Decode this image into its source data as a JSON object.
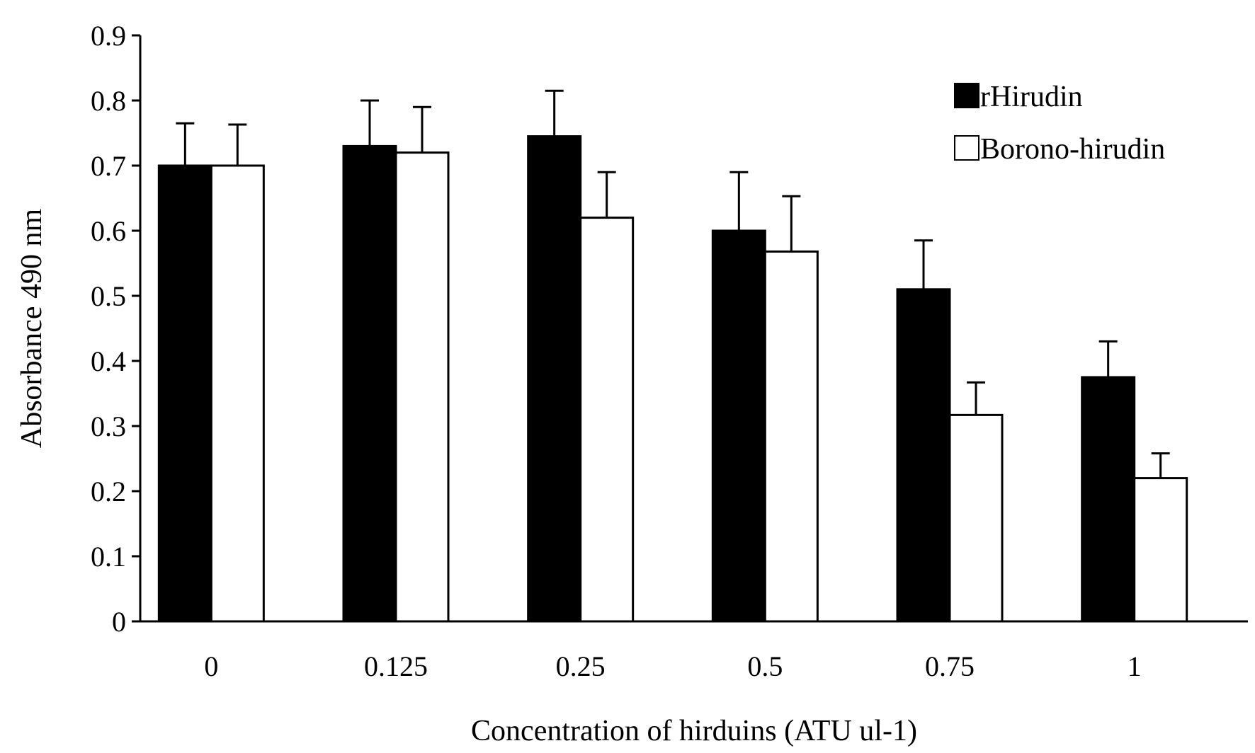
{
  "chart_data": {
    "type": "bar",
    "categories": [
      "0",
      "0.125",
      "0.25",
      "0.5",
      "0.75",
      "1"
    ],
    "series": [
      {
        "name": "rHirudin",
        "color": "#000000",
        "values": [
          0.7,
          0.73,
          0.745,
          0.6,
          0.51,
          0.375
        ],
        "error": [
          0.065,
          0.07,
          0.07,
          0.09,
          0.075,
          0.055
        ]
      },
      {
        "name": "Borono-hirudin",
        "color": "#ffffff",
        "values": [
          0.7,
          0.72,
          0.62,
          0.568,
          0.317,
          0.22
        ],
        "error": [
          0.063,
          0.07,
          0.07,
          0.085,
          0.05,
          0.038
        ]
      }
    ],
    "xlabel": "Concentration of hirduins (ATU ul-1)",
    "ylabel": "Absorbance 490 nm",
    "ylim": [
      0,
      0.9
    ],
    "yticks": [
      "0",
      "0.1",
      "0.2",
      "0.3",
      "0.4",
      "0.5",
      "0.6",
      "0.7",
      "0.8",
      "0.9"
    ],
    "grid": false,
    "legend_position": "top-right"
  }
}
